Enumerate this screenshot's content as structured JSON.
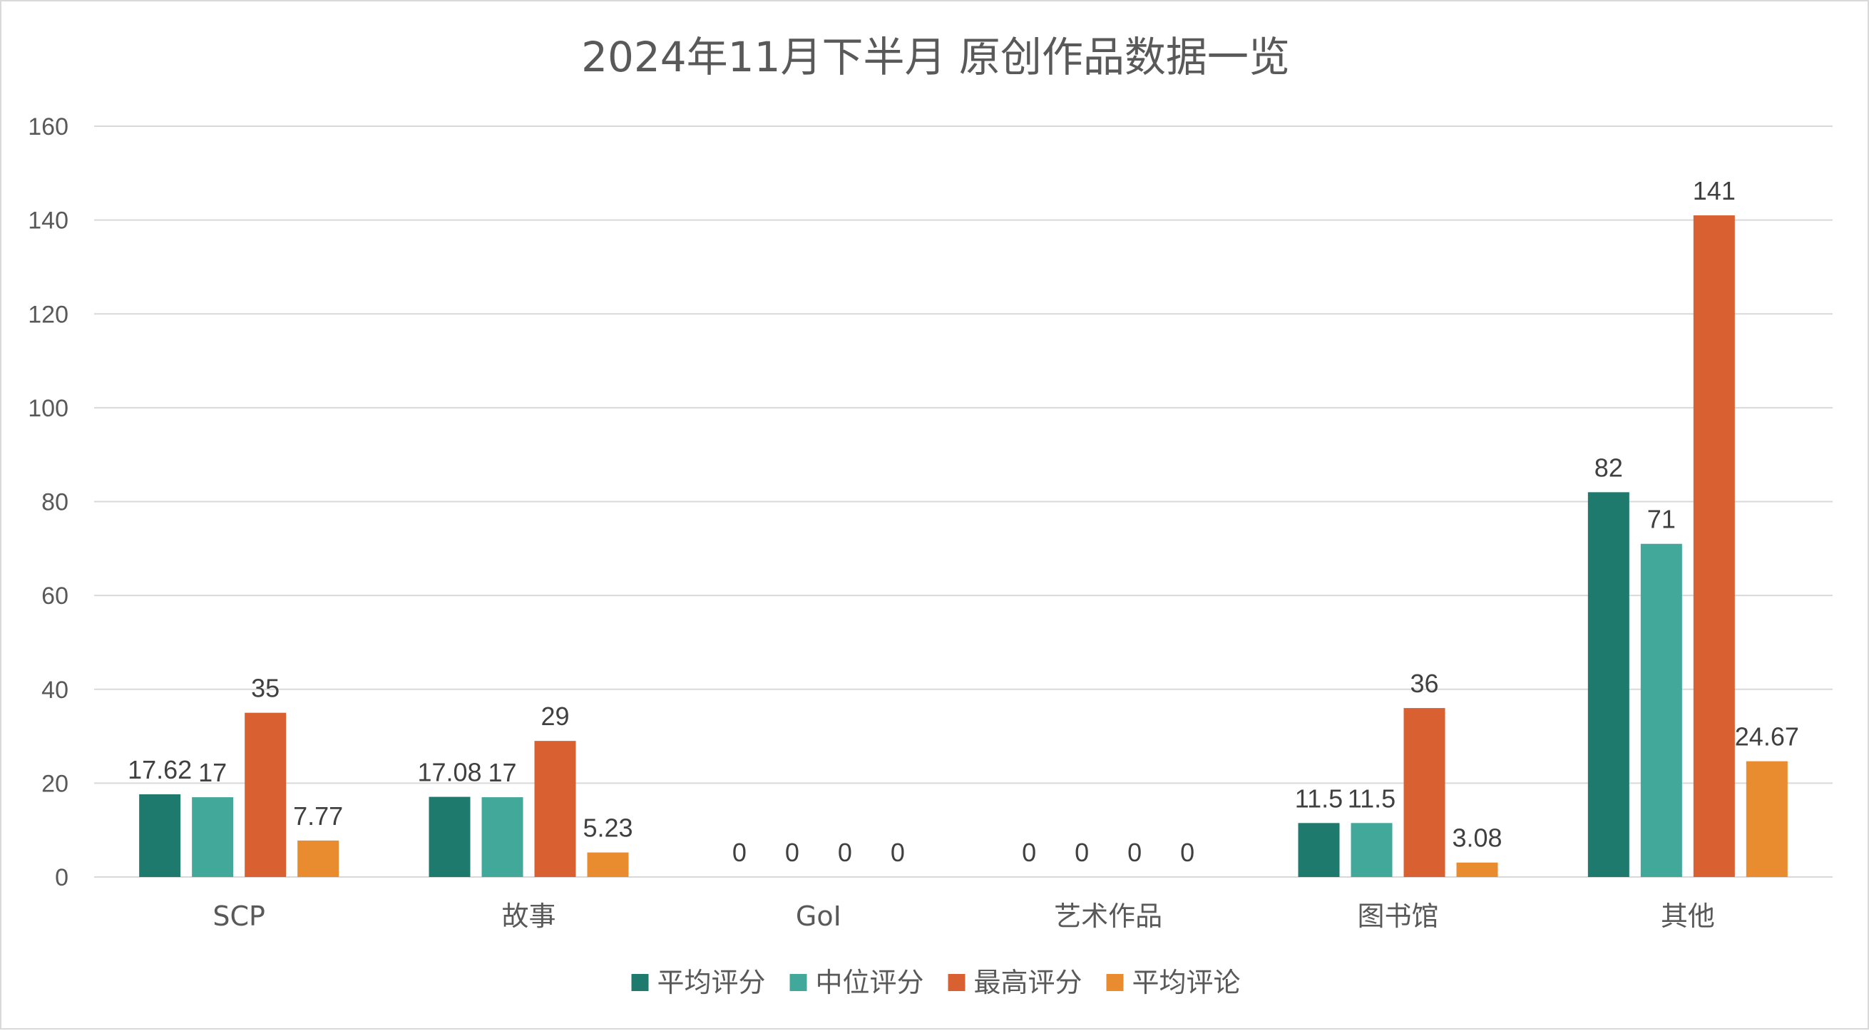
{
  "chart_data": {
    "type": "bar",
    "title": "2024年11月下半月 原创作品数据一览",
    "xlabel": "",
    "ylabel": "",
    "ylim": [
      0,
      160
    ],
    "yticks": [
      0,
      20,
      40,
      60,
      80,
      100,
      120,
      140,
      160
    ],
    "grid": true,
    "legend_position": "bottom",
    "categories": [
      "SCP",
      "故事",
      "GoI",
      "艺术作品",
      "图书馆",
      "其他"
    ],
    "series": [
      {
        "name": "平均评分",
        "color": "#1e7a6c",
        "values": [
          17.62,
          17.08,
          0,
          0,
          11.5,
          82
        ],
        "labels": [
          "17.62",
          "17.08",
          "0",
          "0",
          "11.5",
          "82"
        ]
      },
      {
        "name": "中位评分",
        "color": "#41a89a",
        "values": [
          17,
          17,
          0,
          0,
          11.5,
          71
        ],
        "labels": [
          "17",
          "17",
          "0",
          "0",
          "11.5",
          "71"
        ]
      },
      {
        "name": "最高评分",
        "color": "#d96131",
        "values": [
          35,
          29,
          0,
          0,
          36,
          141
        ],
        "labels": [
          "35",
          "29",
          "0",
          "0",
          "36",
          "141"
        ]
      },
      {
        "name": "平均评论",
        "color": "#e98c30",
        "values": [
          7.77,
          5.23,
          0,
          0,
          3.08,
          24.67
        ],
        "labels": [
          "7.77",
          "5.23",
          "0",
          "0",
          "3.08",
          "24.67"
        ]
      }
    ]
  }
}
